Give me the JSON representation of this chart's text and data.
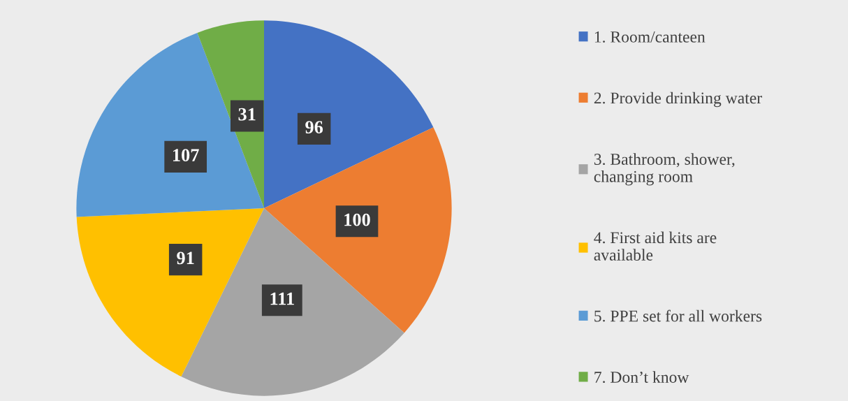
{
  "chart_data": {
    "type": "pie",
    "categories": [
      "1. Room/canteen",
      "2. Provide drinking water",
      "3. Bathroom, shower,\nchanging room",
      "4. First aid kits are\navailable",
      "5. PPE set for all workers",
      "7. Don’t know"
    ],
    "values": [
      96,
      100,
      111,
      91,
      107,
      31
    ],
    "colors": [
      "#4472c4",
      "#ed7d31",
      "#a5a5a5",
      "#ffc000",
      "#5b9bd5",
      "#70ad47"
    ],
    "data_labels": true,
    "legend": "right"
  }
}
